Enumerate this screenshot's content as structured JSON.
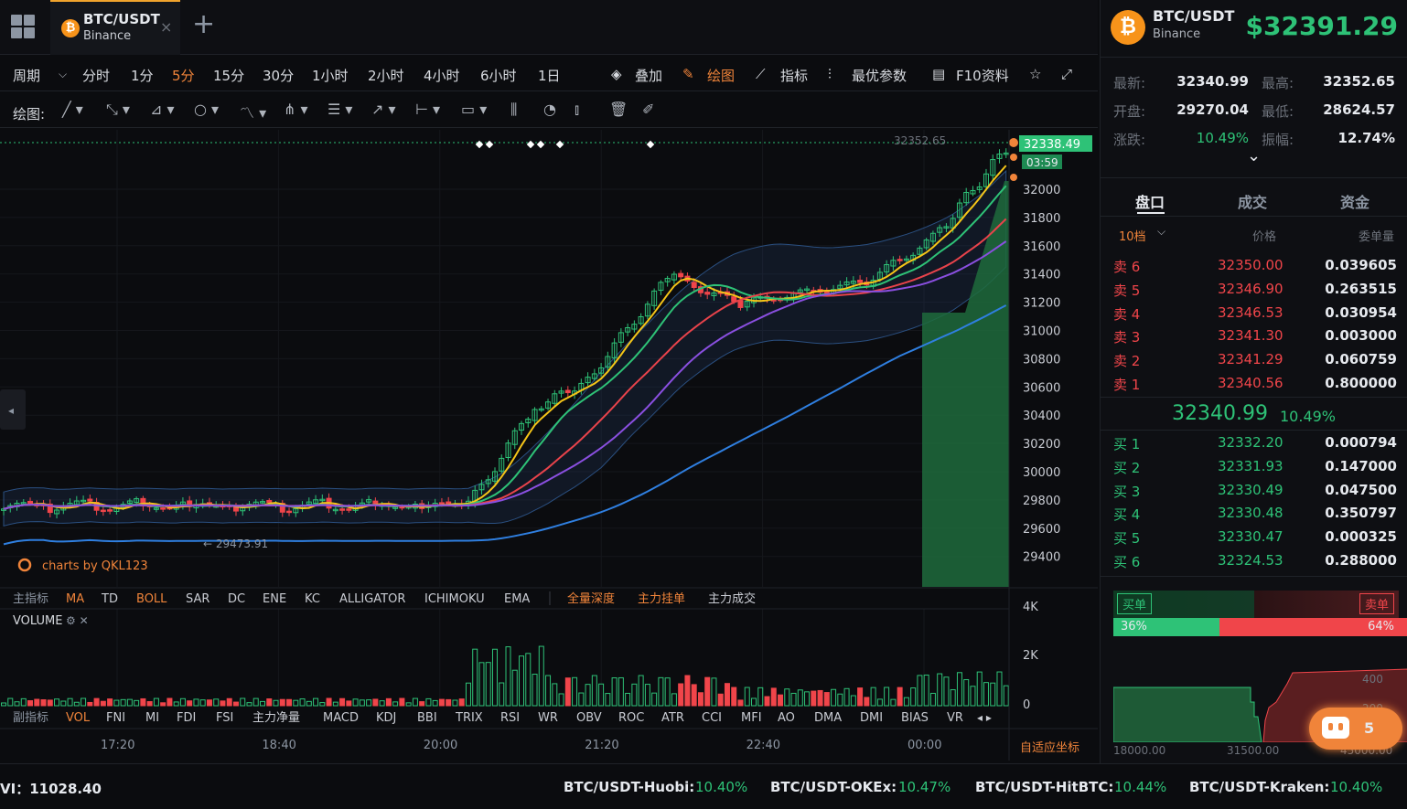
{
  "tab": {
    "pair": "BTC/USDT",
    "exchange": "Binance",
    "coin_symbol": "₿",
    "close": "×"
  },
  "periods": [
    "周期",
    "分时",
    "1分",
    "5分",
    "15分",
    "30分",
    "1小时",
    "2小时",
    "4小时",
    "6小时",
    "1日"
  ],
  "active_period": "5分",
  "period_chevron": "⌵",
  "toolbar_right": {
    "overlay": "叠加",
    "draw": "绘图",
    "indicators": "指标",
    "best_params": "最优参数",
    "f10": "F10资料"
  },
  "draw_label": "绘图:",
  "chart": {
    "price_axis": [
      "32000",
      "31800",
      "31600",
      "31400",
      "31200",
      "31000",
      "30800",
      "30600",
      "30400",
      "30200",
      "30000",
      "29800",
      "29600",
      "29400"
    ],
    "last_price_tag": "32338.49",
    "countdown_tag": "03:59",
    "high_mark": "32352.65",
    "low_mark": "← 29473.91",
    "watermark": "charts by QKL123",
    "main_indicator_label": "主指标",
    "main_indicators": [
      "MA",
      "TD",
      "BOLL",
      "SAR",
      "DC",
      "ENE",
      "KC",
      "ALLIGATOR",
      "ICHIMOKU",
      "EMA"
    ],
    "depth_tabs": [
      "全量深度",
      "主力挂单",
      "主力成交"
    ],
    "volume_label": "VOLUME",
    "volume_icons": "⚙ ✕",
    "volume_axis": [
      "4K",
      "2K",
      "0"
    ],
    "sub_indicator_label": "副指标",
    "sub_indicators": [
      "VOL",
      "FNI",
      "MI",
      "FDI",
      "FSI",
      "主力净量",
      "MACD",
      "KDJ",
      "BBI",
      "TRIX",
      "RSI",
      "WR",
      "OBV",
      "ROC",
      "ATR",
      "CCI",
      "MFI",
      "AO",
      "DMA",
      "DMI",
      "BIAS",
      "VR"
    ],
    "sub_scroll": "◂ ▸",
    "time_axis": [
      "17:20",
      "18:40",
      "20:00",
      "21:20",
      "22:40",
      "00:00"
    ],
    "auto_axis": "自适应坐标",
    "collapse_arrow": "◂",
    "colors": {
      "up": "#2ec277",
      "down": "#f0454a",
      "ma5": "#f5c518",
      "ma10": "#2ec277",
      "ma20": "#e8434b",
      "ma30": "#8a4fe0",
      "ma60": "#2f7fe0"
    }
  },
  "right_panel": {
    "pair": "BTC/USDT",
    "exchange": "Binance",
    "price": "$32391.29",
    "stats": [
      {
        "l1": "最新:",
        "v1": "32340.99",
        "l2": "最高:",
        "v2": "32352.65"
      },
      {
        "l1": "开盘:",
        "v1": "29270.04",
        "l2": "最低:",
        "v2": "28624.57"
      },
      {
        "l1": "涨跌:",
        "v1": "10.49%",
        "l2": "振幅:",
        "v2": "12.74%"
      }
    ],
    "expand": "⌄",
    "tabs": [
      "盘口",
      "成交",
      "资金"
    ],
    "depth_select": "10档",
    "col_price": "价格",
    "col_qty": "委单量",
    "asks": [
      {
        "label": "卖 6",
        "price": "32350.00",
        "qty": "0.039605"
      },
      {
        "label": "卖 5",
        "price": "32346.90",
        "qty": "0.263515"
      },
      {
        "label": "卖 4",
        "price": "32346.53",
        "qty": "0.030954"
      },
      {
        "label": "卖 3",
        "price": "32341.30",
        "qty": "0.003000"
      },
      {
        "label": "卖 2",
        "price": "32341.29",
        "qty": "0.060759"
      },
      {
        "label": "卖 1",
        "price": "32340.56",
        "qty": "0.800000"
      }
    ],
    "mid_price": "32340.99",
    "mid_change": "10.49%",
    "bids": [
      {
        "label": "买 1",
        "price": "32332.20",
        "qty": "0.000794"
      },
      {
        "label": "买 2",
        "price": "32331.93",
        "qty": "0.147000"
      },
      {
        "label": "买 3",
        "price": "32330.49",
        "qty": "0.047500"
      },
      {
        "label": "买 4",
        "price": "32330.48",
        "qty": "0.350797"
      },
      {
        "label": "买 5",
        "price": "32330.47",
        "qty": "0.000325"
      },
      {
        "label": "买 6",
        "price": "32324.53",
        "qty": "0.288000"
      }
    ],
    "buy_label": "买单",
    "sell_label": "卖单",
    "buy_pct": "36%",
    "sell_pct": "64%",
    "buy_ratio": 0.36,
    "depth_axis_x": [
      "18000.00",
      "31500.00",
      "45000.00"
    ],
    "depth_axis_y": [
      "400",
      "200"
    ],
    "chat_count": "5"
  },
  "bottom": {
    "vi": "VI：11028.40",
    "markets": [
      {
        "name": "BTC/USDT-Huobi:",
        "value": "10.40%"
      },
      {
        "name": "BTC/USDT-OKEx:",
        "value": "10.47%"
      },
      {
        "name": "BTC/USDT-HitBTC:",
        "value": "10.44%"
      },
      {
        "name": "BTC/USDT-Kraken:",
        "value": "10.40%"
      }
    ]
  }
}
